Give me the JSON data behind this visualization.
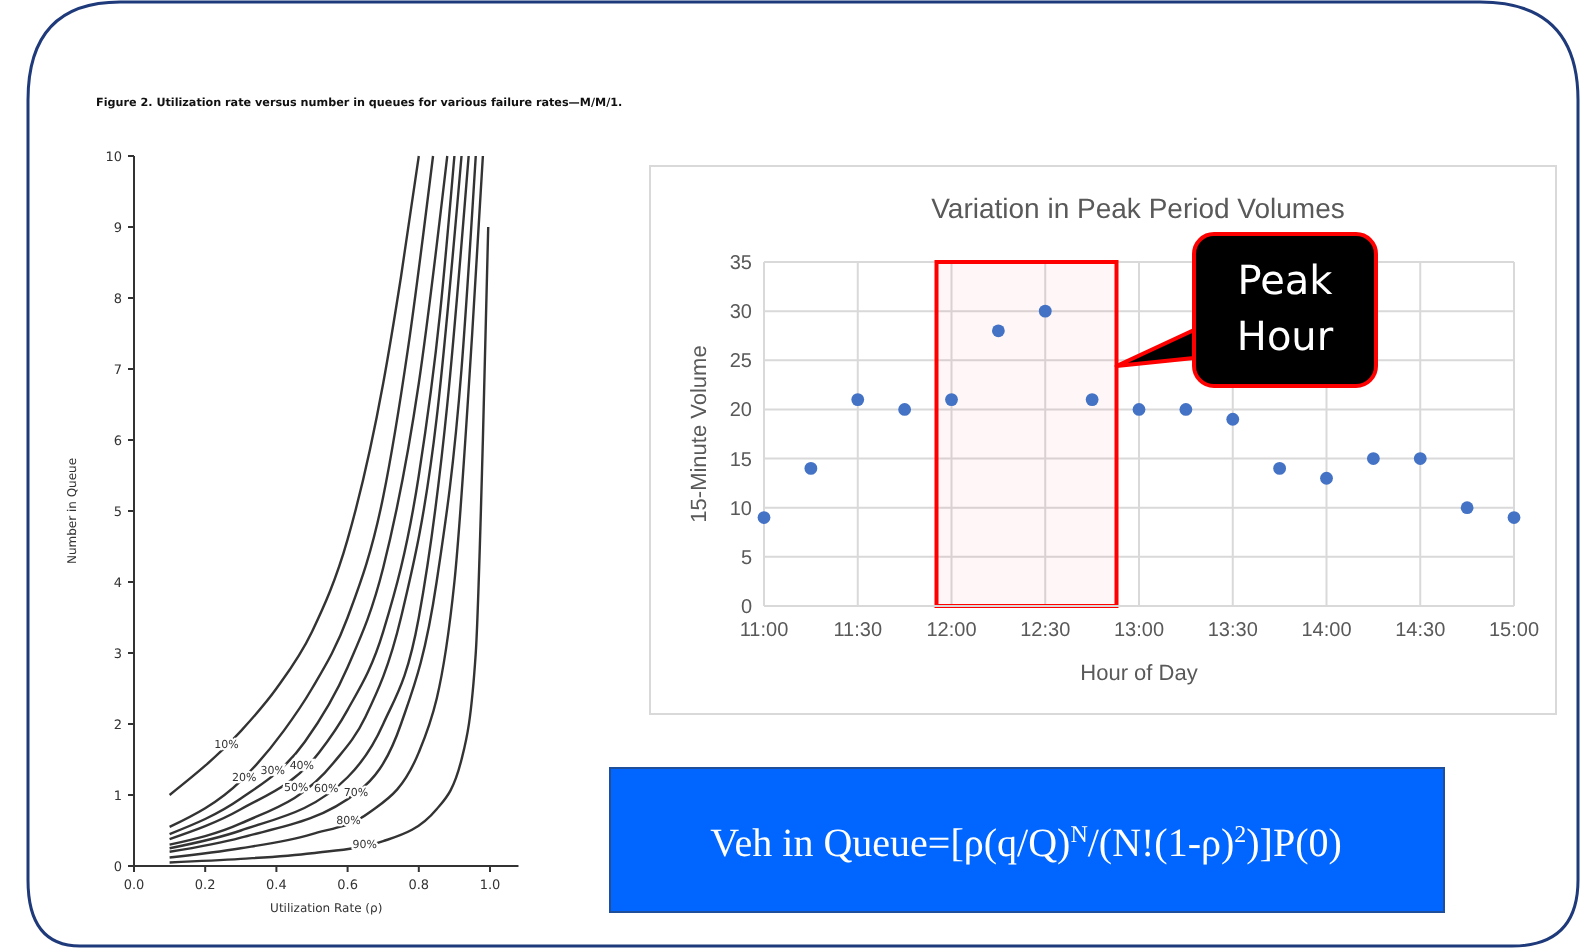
{
  "chart_data": [
    {
      "type": "line",
      "title": "Figure 2.  Utilization rate versus number in queues for various failure rates—M/M/1.",
      "xlabel": "Utilization Rate (ρ)",
      "ylabel": "Number in Queue",
      "xlim": [
        0,
        1.08
      ],
      "ylim": [
        0,
        10
      ],
      "xticks": [
        {
          "value": 0,
          "label": "0.0"
        },
        0.2,
        0.4,
        0.6,
        0.8,
        {
          "value": 1,
          "label": "1.0"
        }
      ],
      "yticks": [
        0,
        1,
        2,
        3,
        4,
        5,
        6,
        7,
        8,
        9,
        10
      ],
      "grid": false,
      "legend": false,
      "marker": "none",
      "line_style": "solid",
      "series": [
        {
          "name": "10%",
          "color": "#333333",
          "x": [
            0.1,
            0.3,
            0.4,
            0.5,
            0.6,
            0.7,
            0.75,
            0.8
          ],
          "values": [
            1.0,
            1.9,
            2.5,
            3.3,
            4.6,
            6.8,
            8.3,
            10
          ]
        },
        {
          "name": "20%",
          "color": "#333333",
          "x": [
            0.1,
            0.3,
            0.42,
            0.5,
            0.6,
            0.7,
            0.77,
            0.84
          ],
          "values": [
            0.55,
            1.2,
            1.9,
            2.5,
            3.5,
            5.2,
            7.3,
            10
          ]
        },
        {
          "name": "30%",
          "color": "#333333",
          "x": [
            0.1,
            0.3,
            0.48,
            0.6,
            0.7,
            0.8,
            0.88
          ],
          "values": [
            0.45,
            0.95,
            1.75,
            2.8,
            4.2,
            6.8,
            10
          ]
        },
        {
          "name": "40%",
          "color": "#333333",
          "x": [
            0.1,
            0.3,
            0.52,
            0.6,
            0.7,
            0.8,
            0.86,
            0.9
          ],
          "values": [
            0.38,
            0.8,
            1.6,
            2.2,
            3.3,
            5.5,
            7.8,
            10
          ]
        },
        {
          "name": "50%",
          "color": "#333333",
          "x": [
            0.1,
            0.3,
            0.56,
            0.65,
            0.75,
            0.85,
            0.92
          ],
          "values": [
            0.3,
            0.6,
            1.45,
            2.1,
            3.5,
            6.3,
            10
          ]
        },
        {
          "name": "60%",
          "color": "#333333",
          "x": [
            0.1,
            0.3,
            0.6,
            0.7,
            0.8,
            0.88,
            0.94
          ],
          "values": [
            0.25,
            0.5,
            1.25,
            2.0,
            3.5,
            6.5,
            10
          ]
        },
        {
          "name": "70%",
          "color": "#333333",
          "x": [
            0.1,
            0.3,
            0.63,
            0.75,
            0.85,
            0.92,
            0.96
          ],
          "values": [
            0.2,
            0.4,
            1.05,
            2.0,
            4.0,
            7.0,
            10
          ]
        },
        {
          "name": "80%",
          "color": "#333333",
          "x": [
            0.1,
            0.3,
            0.5,
            0.66,
            0.8,
            0.9,
            0.95,
            0.98
          ],
          "values": [
            0.12,
            0.25,
            0.45,
            0.75,
            1.6,
            4.0,
            7.5,
            10
          ]
        },
        {
          "name": "90%",
          "color": "#333333",
          "x": [
            0.1,
            0.3,
            0.5,
            0.7,
            0.85,
            0.92,
            0.96,
            0.98,
            0.995
          ],
          "values": [
            0.05,
            0.1,
            0.18,
            0.35,
            0.8,
            1.5,
            3,
            6,
            9
          ]
        }
      ]
    },
    {
      "type": "scatter",
      "title": "Variation in Peak Period Volumes",
      "xlabel": "Hour of Day",
      "ylabel": "15-Minute Volume",
      "xlim": [
        11,
        15
      ],
      "ylim": [
        0,
        35
      ],
      "xticks": [
        {
          "value": 11,
          "label": "11:00"
        },
        {
          "value": 11.5,
          "label": "11:30"
        },
        {
          "value": 12,
          "label": "12:00"
        },
        {
          "value": 12.5,
          "label": "12:30"
        },
        {
          "value": 13,
          "label": "13:00"
        },
        {
          "value": 13.5,
          "label": "13:30"
        },
        {
          "value": 14,
          "label": "14:00"
        },
        {
          "value": 14.5,
          "label": "14:30"
        },
        {
          "value": 15,
          "label": "15:00"
        }
      ],
      "yticks": [
        0,
        5,
        10,
        15,
        20,
        25,
        30,
        35
      ],
      "grid": true,
      "marker": "circle",
      "x": [
        11,
        11.25,
        11.5,
        11.75,
        12,
        12.25,
        12.5,
        12.75,
        13,
        13.25,
        13.5,
        13.75,
        14,
        14.25,
        14.5,
        14.75,
        15
      ],
      "series": [
        {
          "color": "#4472c4",
          "values": [
            9,
            14,
            21,
            20,
            21,
            28,
            30,
            21,
            20,
            20,
            19,
            14,
            13,
            15,
            15,
            10,
            9
          ]
        }
      ],
      "bands": [
        {
          "axis": "x",
          "from": 11.92,
          "to": 12.88,
          "label": "Peak Hour",
          "color": "#ff0000"
        }
      ]
    },
    {
      "type": "other",
      "annotations": [
        "Veh in Queue=[ρ(q/Q)$^{N}$/(N!(1-ρ)$^{2}$)]P(0)"
      ]
    }
  ]
}
